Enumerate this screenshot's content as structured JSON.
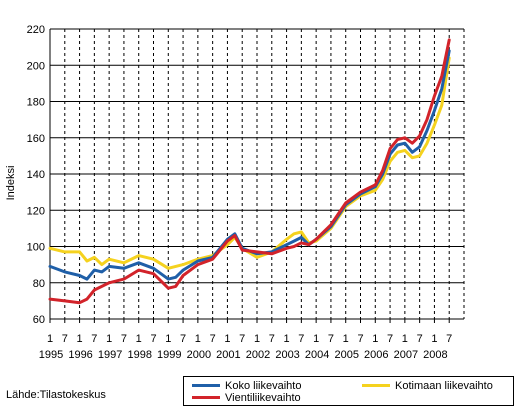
{
  "chart_data": {
    "type": "line",
    "title": "",
    "xlabel": "",
    "ylabel": "Indeksi",
    "ylim": [
      60,
      220
    ],
    "yticks": [
      60,
      80,
      100,
      120,
      140,
      160,
      180,
      200,
      220
    ],
    "month_labels": [
      "1",
      "7"
    ],
    "x_start": "1995-01",
    "years": [
      "1995",
      "1996",
      "1997",
      "1998",
      "1999",
      "2000",
      "2001",
      "2002",
      "2003",
      "2004",
      "2005",
      "2006",
      "2007",
      "2008"
    ],
    "grid": true,
    "series": [
      {
        "name": "Koko liikevaihto",
        "color": "#1f5fa8",
        "points": [
          [
            "1995-01",
            89
          ],
          [
            "1995-07",
            86
          ],
          [
            "1996-01",
            84
          ],
          [
            "1996-04",
            82
          ],
          [
            "1996-07",
            87
          ],
          [
            "1996-10",
            86
          ],
          [
            "1997-01",
            89
          ],
          [
            "1997-07",
            88
          ],
          [
            "1998-01",
            91
          ],
          [
            "1998-07",
            88
          ],
          [
            "1999-01",
            82
          ],
          [
            "1999-04",
            83
          ],
          [
            "1999-07",
            87
          ],
          [
            "2000-01",
            92
          ],
          [
            "2000-07",
            94
          ],
          [
            "2001-01",
            104
          ],
          [
            "2001-04",
            107
          ],
          [
            "2001-07",
            99
          ],
          [
            "2002-01",
            96
          ],
          [
            "2002-07",
            97
          ],
          [
            "2003-01",
            101
          ],
          [
            "2003-04",
            103
          ],
          [
            "2003-07",
            105
          ],
          [
            "2003-10",
            101
          ],
          [
            "2004-01",
            104
          ],
          [
            "2004-07",
            111
          ],
          [
            "2005-01",
            123
          ],
          [
            "2005-07",
            129
          ],
          [
            "2006-01",
            133
          ],
          [
            "2006-04",
            140
          ],
          [
            "2006-07",
            151
          ],
          [
            "2006-10",
            156
          ],
          [
            "2007-01",
            157
          ],
          [
            "2007-04",
            152
          ],
          [
            "2007-07",
            155
          ],
          [
            "2007-10",
            164
          ],
          [
            "2008-01",
            175
          ],
          [
            "2008-04",
            187
          ],
          [
            "2008-07",
            208
          ]
        ]
      },
      {
        "name": "Kotimaan liikevaihto",
        "color": "#f5d21e",
        "points": [
          [
            "1995-01",
            99
          ],
          [
            "1995-07",
            97
          ],
          [
            "1996-01",
            97
          ],
          [
            "1996-04",
            92
          ],
          [
            "1996-07",
            94
          ],
          [
            "1996-10",
            90
          ],
          [
            "1997-01",
            93
          ],
          [
            "1997-07",
            91
          ],
          [
            "1998-01",
            95
          ],
          [
            "1998-07",
            93
          ],
          [
            "1999-01",
            88
          ],
          [
            "1999-04",
            89
          ],
          [
            "1999-07",
            90
          ],
          [
            "2000-01",
            93
          ],
          [
            "2000-07",
            95
          ],
          [
            "2001-01",
            101
          ],
          [
            "2001-04",
            105
          ],
          [
            "2001-07",
            99
          ],
          [
            "2002-01",
            94
          ],
          [
            "2002-07",
            97
          ],
          [
            "2003-01",
            104
          ],
          [
            "2003-04",
            107
          ],
          [
            "2003-07",
            108
          ],
          [
            "2003-10",
            102
          ],
          [
            "2004-01",
            103
          ],
          [
            "2004-07",
            110
          ],
          [
            "2005-01",
            122
          ],
          [
            "2005-07",
            128
          ],
          [
            "2006-01",
            131
          ],
          [
            "2006-04",
            137
          ],
          [
            "2006-07",
            147
          ],
          [
            "2006-10",
            152
          ],
          [
            "2007-01",
            153
          ],
          [
            "2007-04",
            149
          ],
          [
            "2007-07",
            150
          ],
          [
            "2007-10",
            157
          ],
          [
            "2008-01",
            167
          ],
          [
            "2008-04",
            178
          ],
          [
            "2008-07",
            204
          ]
        ]
      },
      {
        "name": "Vientiliikevaihto",
        "color": "#d2232a",
        "points": [
          [
            "1995-01",
            71
          ],
          [
            "1995-07",
            70
          ],
          [
            "1996-01",
            69
          ],
          [
            "1996-04",
            71
          ],
          [
            "1996-07",
            76
          ],
          [
            "1996-10",
            78
          ],
          [
            "1997-01",
            80
          ],
          [
            "1997-07",
            82
          ],
          [
            "1998-01",
            87
          ],
          [
            "1998-07",
            85
          ],
          [
            "1999-01",
            77
          ],
          [
            "1999-04",
            78
          ],
          [
            "1999-07",
            84
          ],
          [
            "2000-01",
            90
          ],
          [
            "2000-07",
            93
          ],
          [
            "2001-01",
            103
          ],
          [
            "2001-04",
            106
          ],
          [
            "2001-07",
            98
          ],
          [
            "2002-01",
            97
          ],
          [
            "2002-07",
            96
          ],
          [
            "2003-01",
            99
          ],
          [
            "2003-04",
            100
          ],
          [
            "2003-07",
            102
          ],
          [
            "2003-10",
            101
          ],
          [
            "2004-01",
            104
          ],
          [
            "2004-07",
            112
          ],
          [
            "2005-01",
            124
          ],
          [
            "2005-07",
            130
          ],
          [
            "2006-01",
            134
          ],
          [
            "2006-04",
            142
          ],
          [
            "2006-07",
            154
          ],
          [
            "2006-10",
            159
          ],
          [
            "2007-01",
            160
          ],
          [
            "2007-04",
            157
          ],
          [
            "2007-07",
            161
          ],
          [
            "2007-10",
            170
          ],
          [
            "2008-01",
            183
          ],
          [
            "2008-04",
            194
          ],
          [
            "2008-07",
            214
          ]
        ]
      }
    ]
  },
  "source": "Lähde:Tilastokeskus"
}
